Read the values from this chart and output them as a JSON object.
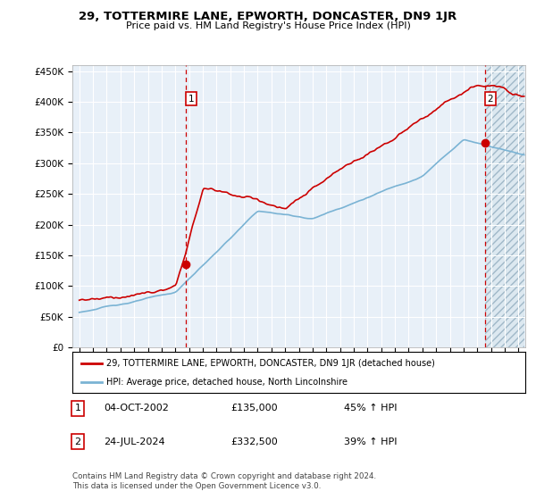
{
  "title": "29, TOTTERMIRE LANE, EPWORTH, DONCASTER, DN9 1JR",
  "subtitle": "Price paid vs. HM Land Registry's House Price Index (HPI)",
  "ytick_values": [
    0,
    50000,
    100000,
    150000,
    200000,
    250000,
    300000,
    350000,
    400000,
    450000
  ],
  "ylim": [
    0,
    460000
  ],
  "xlim_start": 1994.5,
  "xlim_end": 2027.5,
  "hpi_color": "#7ab3d4",
  "price_color": "#cc0000",
  "marker1_x": 2002.75,
  "marker1_y": 135000,
  "marker2_x": 2024.55,
  "marker2_y": 332500,
  "vline1_x": 2002.75,
  "vline2_x": 2024.55,
  "legend_line1": "29, TOTTERMIRE LANE, EPWORTH, DONCASTER, DN9 1JR (detached house)",
  "legend_line2": "HPI: Average price, detached house, North Lincolnshire",
  "annotation1_num": "1",
  "annotation1_date": "04-OCT-2002",
  "annotation1_price": "£135,000",
  "annotation1_hpi": "45% ↑ HPI",
  "annotation2_num": "2",
  "annotation2_date": "24-JUL-2024",
  "annotation2_price": "£332,500",
  "annotation2_hpi": "39% ↑ HPI",
  "footer": "Contains HM Land Registry data © Crown copyright and database right 2024.\nThis data is licensed under the Open Government Licence v3.0.",
  "bg_color": "#ffffff",
  "plot_bg_color": "#e8f0f8",
  "grid_color": "#ffffff"
}
